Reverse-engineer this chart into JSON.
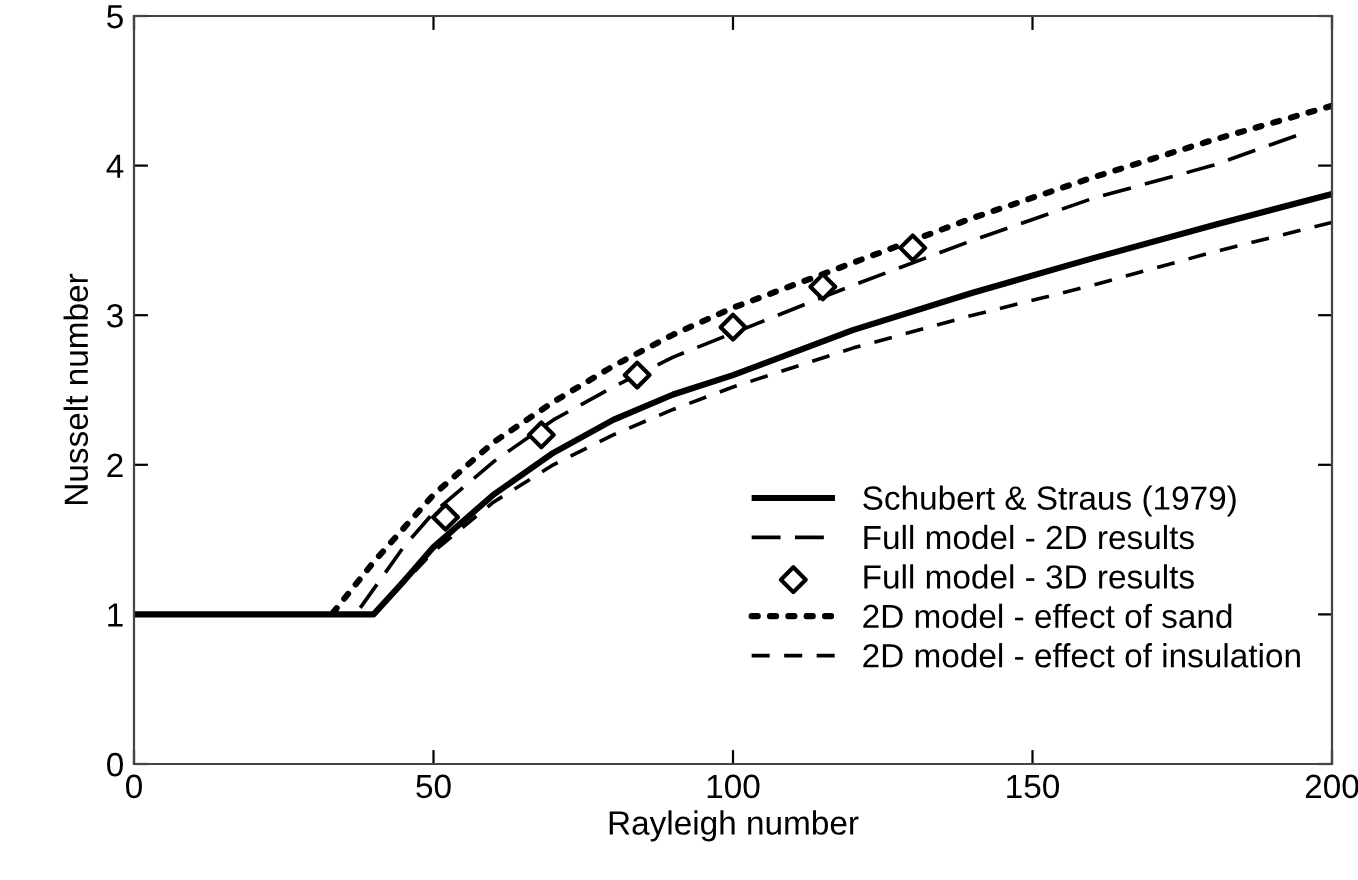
{
  "chart_data": {
    "type": "line",
    "xlabel": "Rayleigh number",
    "ylabel": "Nusselt number",
    "xlim": [
      0,
      200
    ],
    "ylim": [
      0,
      5
    ],
    "xticks": [
      0,
      50,
      100,
      150,
      200
    ],
    "yticks": [
      0,
      1,
      2,
      3,
      4,
      5
    ],
    "grid": false,
    "legend": "bottom right",
    "series": [
      {
        "name": "Schubert & Straus (1979)",
        "color": "#000000",
        "line_style": "solid",
        "x": [
          0,
          40,
          45,
          50,
          60,
          70,
          80,
          90,
          100,
          120,
          140,
          160,
          180,
          200
        ],
        "values": [
          1,
          1,
          1.22,
          1.45,
          1.8,
          2.08,
          2.3,
          2.47,
          2.6,
          2.9,
          3.15,
          3.38,
          3.6,
          3.81
        ]
      },
      {
        "name": "Full model - 2D results",
        "color": "#000000",
        "line_style": "longdash",
        "x": [
          37,
          45,
          50,
          60,
          70,
          80,
          90,
          100,
          120,
          140,
          160,
          180,
          194
        ],
        "values": [
          1,
          1.45,
          1.68,
          2.02,
          2.3,
          2.52,
          2.72,
          2.88,
          3.2,
          3.5,
          3.78,
          4.0,
          4.2
        ]
      },
      {
        "name": "Full model - 3D results",
        "color": "#000000",
        "type": "scatter",
        "marker": "diamond",
        "x": [
          52,
          68,
          84,
          100,
          115,
          130
        ],
        "values": [
          1.65,
          2.2,
          2.6,
          2.92,
          3.19,
          3.45
        ]
      },
      {
        "name": "2D model - effect of sand",
        "color": "#000000",
        "line_style": "dotted",
        "x": [
          33,
          40,
          50,
          60,
          70,
          80,
          90,
          100,
          120,
          140,
          160,
          180,
          200
        ],
        "values": [
          1,
          1.35,
          1.8,
          2.15,
          2.42,
          2.66,
          2.87,
          3.05,
          3.35,
          3.65,
          3.92,
          4.17,
          4.4
        ]
      },
      {
        "name": "2D model - effect of insulation",
        "color": "#000000",
        "line_style": "dashed",
        "x": [
          40,
          50,
          60,
          70,
          80,
          90,
          100,
          120,
          140,
          160,
          180,
          200
        ],
        "values": [
          1,
          1.42,
          1.75,
          2.0,
          2.2,
          2.37,
          2.52,
          2.78,
          3.0,
          3.2,
          3.42,
          3.62
        ]
      }
    ]
  }
}
